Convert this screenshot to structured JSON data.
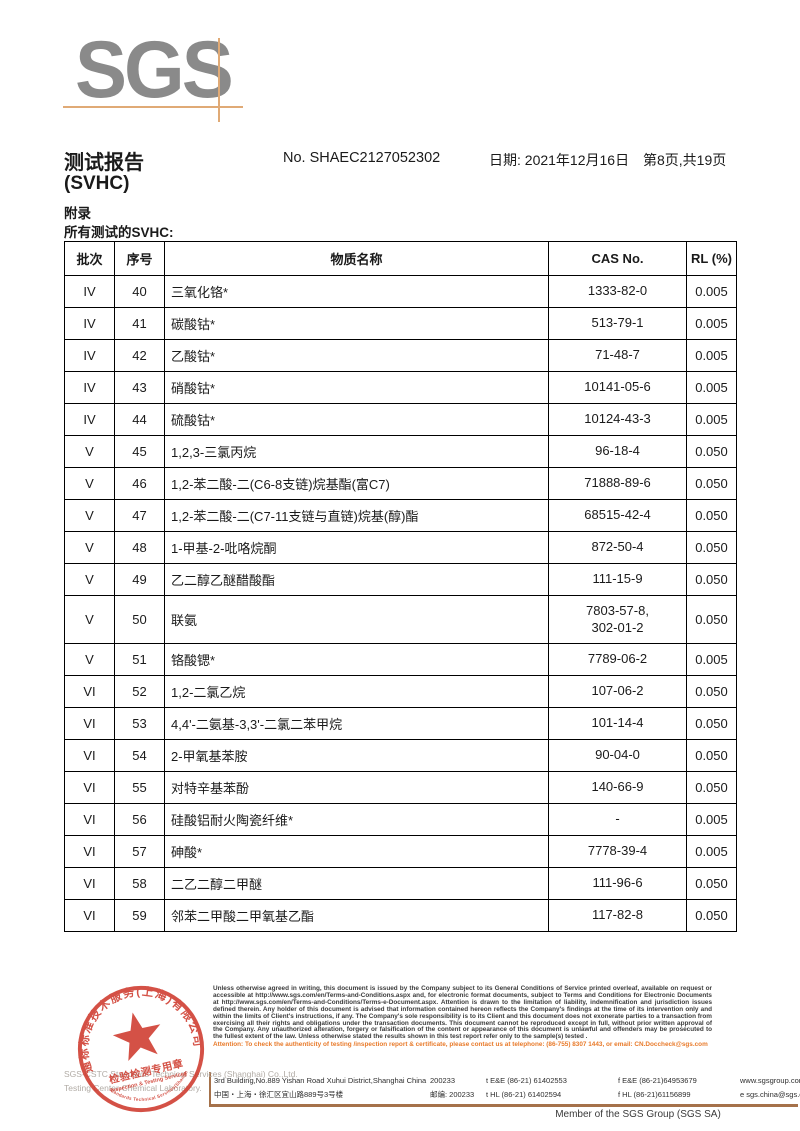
{
  "colors": {
    "logo_gray": "#8a8a8a",
    "logo_line": "#e0aa76",
    "accent_orange": "#e87a2a",
    "stamp_red": "#cf3a2d",
    "line_brown": "#a5714a"
  },
  "header": {
    "logo_text": "SGS",
    "title": "测试报告",
    "subtitle": "(SVHC)",
    "report_no": "No. SHAEC2127052302",
    "date": "日期: 2021年12月16日",
    "page": "第8页,共19页",
    "appendix": "附录",
    "section_label": "所有测试的SVHC:"
  },
  "table": {
    "columns": [
      "批次",
      "序号",
      "物质名称",
      "CAS No.",
      "RL (%)"
    ],
    "rows": [
      {
        "batch": "IV",
        "no": "40",
        "substance": "三氧化铬*",
        "cas": "1333-82-0",
        "rl": "0.005"
      },
      {
        "batch": "IV",
        "no": "41",
        "substance": "碳酸钴*",
        "cas": "513-79-1",
        "rl": "0.005"
      },
      {
        "batch": "IV",
        "no": "42",
        "substance": "乙酸钴*",
        "cas": "71-48-7",
        "rl": "0.005"
      },
      {
        "batch": "IV",
        "no": "43",
        "substance": "硝酸钴*",
        "cas": "10141-05-6",
        "rl": "0.005"
      },
      {
        "batch": "IV",
        "no": "44",
        "substance": "硫酸钴*",
        "cas": "10124-43-3",
        "rl": "0.005"
      },
      {
        "batch": "V",
        "no": "45",
        "substance": "1,2,3-三氯丙烷",
        "cas": "96-18-4",
        "rl": "0.050"
      },
      {
        "batch": "V",
        "no": "46",
        "substance": "1,2-苯二酸-二(C6-8支链)烷基酯(富C7)",
        "cas": "71888-89-6",
        "rl": "0.050"
      },
      {
        "batch": "V",
        "no": "47",
        "substance": "1,2-苯二酸-二(C7-11支链与直链)烷基(醇)酯",
        "cas": "68515-42-4",
        "rl": "0.050"
      },
      {
        "batch": "V",
        "no": "48",
        "substance": "1-甲基-2-吡咯烷酮",
        "cas": "872-50-4",
        "rl": "0.050"
      },
      {
        "batch": "V",
        "no": "49",
        "substance": "乙二醇乙醚醋酸酯",
        "cas": "111-15-9",
        "rl": "0.050"
      },
      {
        "batch": "V",
        "no": "50",
        "substance": "联氨",
        "cas": "7803-57-8,\n302-01-2",
        "rl": "0.050"
      },
      {
        "batch": "V",
        "no": "51",
        "substance": "铬酸锶*",
        "cas": "7789-06-2",
        "rl": "0.005"
      },
      {
        "batch": "VI",
        "no": "52",
        "substance": "1,2-二氯乙烷",
        "cas": "107-06-2",
        "rl": "0.050"
      },
      {
        "batch": "VI",
        "no": "53",
        "substance": "4,4'-二氨基-3,3'-二氯二苯甲烷",
        "cas": "101-14-4",
        "rl": "0.050"
      },
      {
        "batch": "VI",
        "no": "54",
        "substance": "2-甲氧基苯胺",
        "cas": "90-04-0",
        "rl": "0.050"
      },
      {
        "batch": "VI",
        "no": "55",
        "substance": "对特辛基苯酚",
        "cas": "140-66-9",
        "rl": "0.050"
      },
      {
        "batch": "VI",
        "no": "56",
        "substance": "硅酸铝耐火陶瓷纤维*",
        "cas": "-",
        "rl": "0.005"
      },
      {
        "batch": "VI",
        "no": "57",
        "substance": "砷酸*",
        "cas": "7778-39-4",
        "rl": "0.005"
      },
      {
        "batch": "VI",
        "no": "58",
        "substance": "二乙二醇二甲醚",
        "cas": "111-96-6",
        "rl": "0.050"
      },
      {
        "batch": "VI",
        "no": "59",
        "substance": "邻苯二甲酸二甲氧基乙酯",
        "cas": "117-82-8",
        "rl": "0.050"
      }
    ]
  },
  "footer": {
    "stamp": {
      "ring_text_top": "通标标准技术服务(上海)有限公司",
      "ring_text_bottom": "SGS-CSTC Standards Technical Services(Shanghai) Co.,Ltd.",
      "center_cn": "检验检测专用章",
      "center_en": "Inspection & Testing Services"
    },
    "company_line1": "SGS-CSTC Standards Technical Services (Shanghai) Co.,Ltd.",
    "company_line2": "Testing Center-Chemical Laboratory.",
    "legal_text": "Unless otherwise agreed in writing, this document is issued by the Company subject to its General Conditions of Service printed overleaf, available on request or accessible at http://www.sgs.com/en/Terms-and-Conditions.aspx and, for electronic format documents, subject to Terms and Conditions for Electronic Documents at http://www.sgs.com/en/Terms-and-Conditions/Terms-e-Document.aspx. Attention is drawn to the limitation of liability, indemnification and jurisdiction issues defined therein. Any holder of this document is advised that information contained hereon reflects the Company's findings at the time of its intervention only and within the limits of Client's instructions, if any. The Company's sole responsibility is to its Client and this document does not exonerate parties to a transaction from exercising all their rights and obligations under the transaction documents. This document cannot be reproduced except in full, without prior written approval of the Company. Any unauthorized alteration, forgery or falsification of the content or appearance of this document is unlawful and offenders may be prosecuted to the fullest extent of the law. Unless otherwise stated the results shown in this test report refer only to the sample(s) tested .",
    "attention_text": "Attention: To check the authenticity of testing /inspection report & certificate, please contact us at telephone: (86-755) 8307 1443, or email: CN.Doccheck@sgs.com",
    "address_en": "3rd Building,No.889 Yishan Road Xuhui District,Shanghai China",
    "postcode_en": "200233",
    "tel1": "t E&E (86-21) 61402553",
    "fax1": "f E&E (86-21)64953679",
    "web": "www.sgsgroup.com.cn",
    "address_cn": "中国・上海・徐汇区宜山路889号3号楼",
    "postcode_cn": "邮编: 200233",
    "tel2": "t HL (86-21) 61402594",
    "fax2": "f HL (86-21)61156899",
    "email": "e  sgs.china@sgs.com",
    "member_text": "Member of the SGS Group (SGS SA)"
  }
}
